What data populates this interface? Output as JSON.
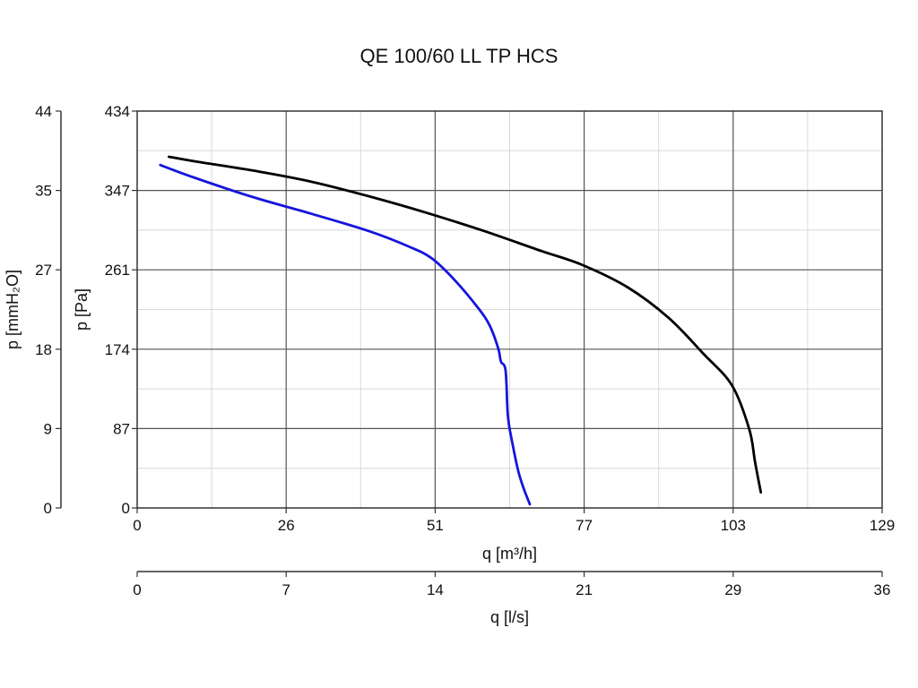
{
  "chart_data": {
    "type": "line",
    "title": "QE 100/60 LL TP HCS",
    "x_axis_primary": {
      "label": "q [m³/h]",
      "ticks": [
        "0",
        "26",
        "51",
        "77",
        "103",
        "129"
      ],
      "range": [
        0,
        129
      ]
    },
    "x_axis_secondary": {
      "label": "q [l/s]",
      "ticks": [
        "0",
        "7",
        "14",
        "21",
        "29",
        "36"
      ],
      "range": [
        0,
        36
      ]
    },
    "y_axis_primary": {
      "label": "p [Pa]",
      "ticks": [
        "0",
        "87",
        "174",
        "261",
        "347",
        "434"
      ],
      "range": [
        0,
        434
      ]
    },
    "y_axis_secondary": {
      "label": "p [mmH₂O]",
      "ticks": [
        "0",
        "9",
        "18",
        "27",
        "35",
        "44"
      ],
      "range": [
        0,
        44
      ]
    },
    "grid": true,
    "series": [
      {
        "color": "#000000",
        "points": [
          [
            5.5,
            384
          ],
          [
            10,
            379
          ],
          [
            20,
            369
          ],
          [
            30,
            357
          ],
          [
            40,
            341
          ],
          [
            50,
            323
          ],
          [
            60,
            303
          ],
          [
            70,
            281
          ],
          [
            77,
            266
          ],
          [
            85,
            241
          ],
          [
            92,
            208
          ],
          [
            98,
            169
          ],
          [
            103,
            134
          ],
          [
            106,
            86
          ],
          [
            107,
            50
          ],
          [
            108,
            17
          ]
        ]
      },
      {
        "color": "#1515dc",
        "points": [
          [
            4,
            375
          ],
          [
            10,
            361
          ],
          [
            20,
            340
          ],
          [
            30,
            322
          ],
          [
            40,
            303
          ],
          [
            47,
            286
          ],
          [
            51,
            273
          ],
          [
            55,
            249
          ],
          [
            59,
            219
          ],
          [
            61,
            200
          ],
          [
            62.5,
            175
          ],
          [
            63,
            160
          ],
          [
            63.8,
            150
          ],
          [
            64.2,
            100
          ],
          [
            65,
            70
          ],
          [
            66,
            40
          ],
          [
            67,
            20
          ],
          [
            68,
            4
          ]
        ]
      }
    ]
  }
}
